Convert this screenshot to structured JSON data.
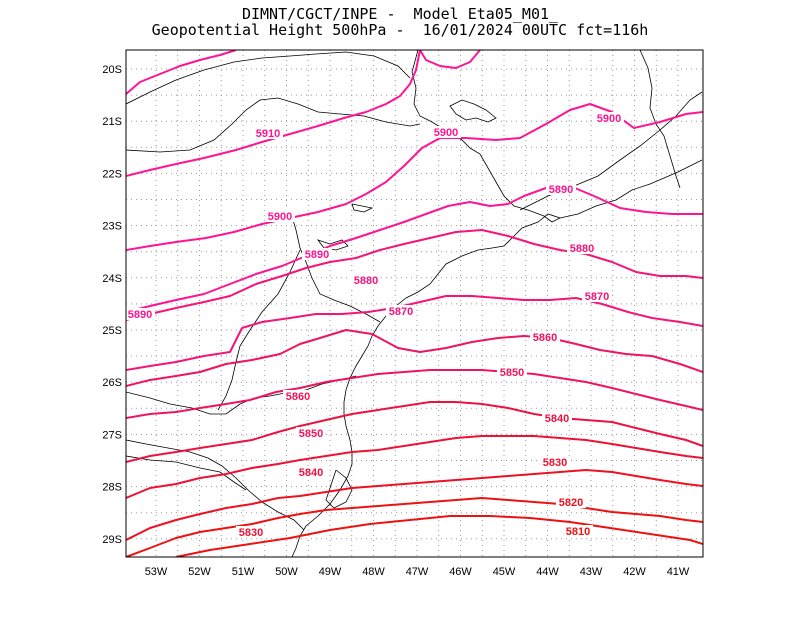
{
  "title": {
    "line1": "DIMNT/CGCT/INPE -  Model Eta05_M01_",
    "line2": "Geopotential Height 500hPa -  16/01/2024 00UTC fct=116h"
  },
  "axes": {
    "y_labels": [
      "20S",
      "21S",
      "22S",
      "23S",
      "24S",
      "25S",
      "26S",
      "27S",
      "28S",
      "29S"
    ],
    "x_labels": [
      "53W",
      "52W",
      "51W",
      "50W",
      "49W",
      "48W",
      "47W",
      "46W",
      "45W",
      "44W",
      "43W",
      "42W",
      "41W"
    ]
  },
  "colors": {
    "hi": "#ff1493",
    "mid": "#f0145a",
    "lo": "#ee1111",
    "coast": "#000000",
    "grid": "#9a9a9a"
  },
  "contours": [
    {
      "value": 5910,
      "label": "5910",
      "color": "#ff1493"
    },
    {
      "value": 5900,
      "label": "5900",
      "color": "#ff1493"
    },
    {
      "value": 5890,
      "label": "5890",
      "color": "#ff1493"
    },
    {
      "value": 5880,
      "label": "5880",
      "color": "#f51478"
    },
    {
      "value": 5870,
      "label": "5870",
      "color": "#f51478"
    },
    {
      "value": 5860,
      "label": "5860",
      "color": "#f0145a"
    },
    {
      "value": 5850,
      "label": "5850",
      "color": "#f0145a"
    },
    {
      "value": 5840,
      "label": "5840",
      "color": "#ee1140"
    },
    {
      "value": 5830,
      "label": "5830",
      "color": "#ee1133"
    },
    {
      "value": 5820,
      "label": "5820",
      "color": "#ee1122"
    },
    {
      "value": 5810,
      "label": "5810",
      "color": "#ee1111"
    }
  ]
}
